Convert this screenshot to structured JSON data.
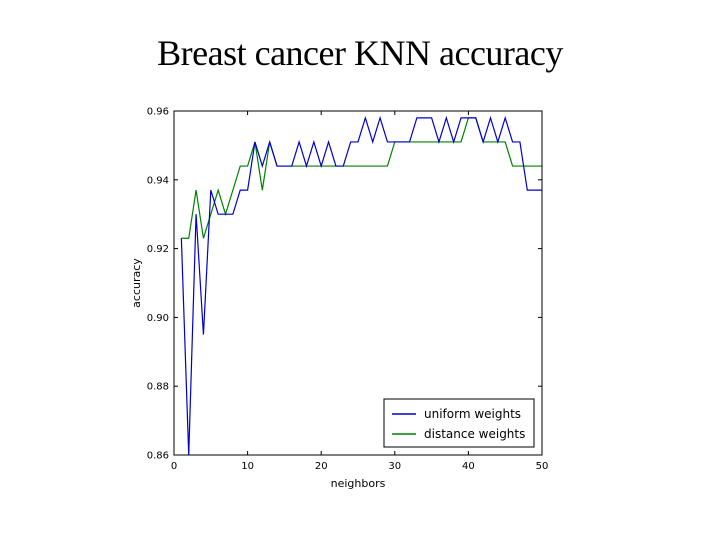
{
  "slide": {
    "title": "Breast cancer KNN accuracy"
  },
  "chart_data": {
    "type": "line",
    "title": "",
    "xlabel": "neighbors",
    "ylabel": "accuracy",
    "xlim": [
      0,
      50
    ],
    "ylim": [
      0.86,
      0.96
    ],
    "xticks": [
      "0",
      "10",
      "20",
      "30",
      "40",
      "50"
    ],
    "yticks": [
      "0.86",
      "0.88",
      "0.90",
      "0.92",
      "0.94",
      "0.96"
    ],
    "grid": false,
    "legend": "lower-right",
    "x": [
      1,
      2,
      3,
      4,
      5,
      6,
      7,
      8,
      9,
      10,
      11,
      12,
      13,
      14,
      15,
      16,
      17,
      18,
      19,
      20,
      21,
      22,
      23,
      24,
      25,
      26,
      27,
      28,
      29,
      30,
      31,
      32,
      33,
      34,
      35,
      36,
      37,
      38,
      39,
      40,
      41,
      42,
      43,
      44,
      45,
      46,
      47,
      48,
      49,
      50
    ],
    "series": [
      {
        "name": "uniform weights",
        "color": "#0000cc",
        "values": [
          0.923,
          0.86,
          0.93,
          0.895,
          0.937,
          0.93,
          0.93,
          0.93,
          0.937,
          0.937,
          0.951,
          0.944,
          0.951,
          0.944,
          0.944,
          0.944,
          0.951,
          0.944,
          0.951,
          0.944,
          0.951,
          0.944,
          0.944,
          0.951,
          0.951,
          0.958,
          0.951,
          0.958,
          0.951,
          0.951,
          0.951,
          0.951,
          0.958,
          0.958,
          0.958,
          0.951,
          0.958,
          0.951,
          0.958,
          0.958,
          0.958,
          0.951,
          0.958,
          0.951,
          0.958,
          0.951,
          0.951,
          0.937,
          0.937,
          0.937
        ]
      },
      {
        "name": "distance weights",
        "color": "#008000",
        "values": [
          0.923,
          0.923,
          0.937,
          0.923,
          0.93,
          0.937,
          0.93,
          0.937,
          0.944,
          0.944,
          0.951,
          0.937,
          0.951,
          0.944,
          0.944,
          0.944,
          0.944,
          0.944,
          0.944,
          0.944,
          0.944,
          0.944,
          0.944,
          0.944,
          0.944,
          0.944,
          0.944,
          0.944,
          0.944,
          0.951,
          0.951,
          0.951,
          0.951,
          0.951,
          0.951,
          0.951,
          0.951,
          0.951,
          0.951,
          0.958,
          0.958,
          0.951,
          0.951,
          0.951,
          0.951,
          0.944,
          0.944,
          0.944,
          0.944,
          0.944
        ]
      }
    ]
  }
}
